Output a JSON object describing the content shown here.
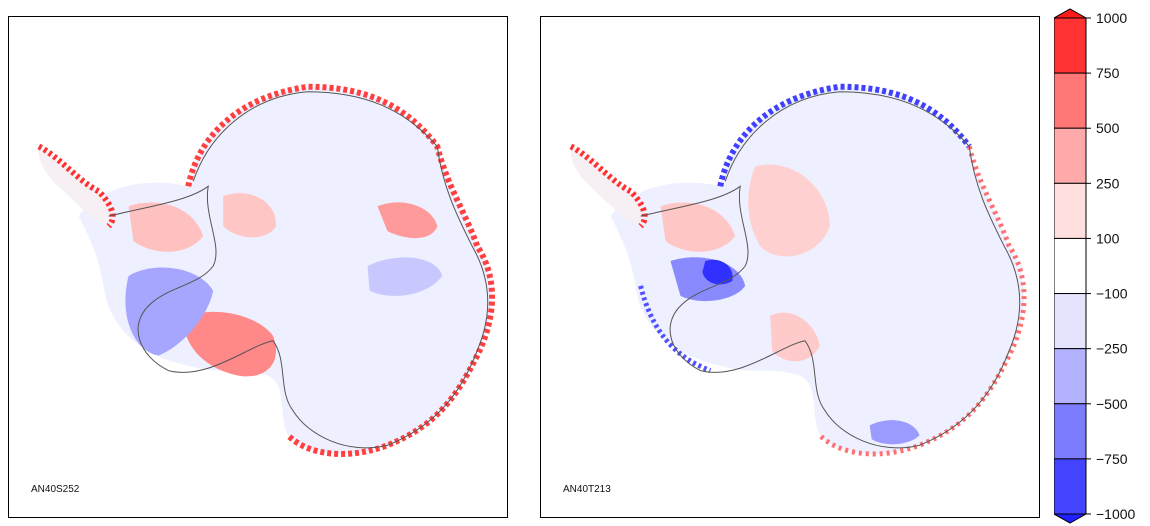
{
  "panels": [
    {
      "label": "AN40S252"
    },
    {
      "label": "AN40T213"
    }
  ],
  "colorbar": {
    "ticks": [
      "1000",
      "750",
      "500",
      "250",
      "100",
      "−100",
      "−250",
      "−500",
      "−750",
      "−1000"
    ],
    "colors": [
      "#ff3333",
      "#ff7777",
      "#ffaaaa",
      "#ffdede",
      "#ffffff",
      "#e4e4ff",
      "#b2b2ff",
      "#7c7cff",
      "#4444ff"
    ],
    "over_color": "#ff1a1a",
    "under_color": "#2020ff"
  }
}
